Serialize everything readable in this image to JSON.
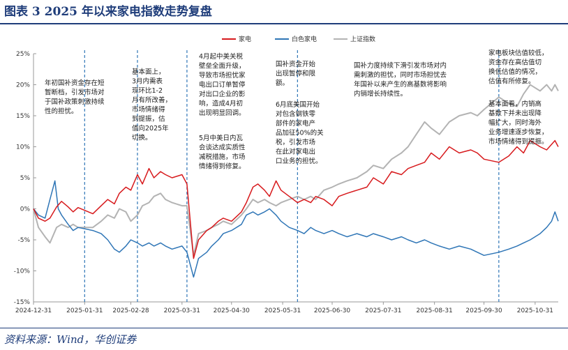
{
  "figure": {
    "title": "图表 3   2025 年以来家电指数走势复盘",
    "source": "资料来源：Wind，华创证券"
  },
  "chart_data": {
    "type": "line",
    "ylim": [
      -15,
      25
    ],
    "y_ticks": [
      25,
      20,
      15,
      10,
      5,
      0,
      -5,
      -10,
      -15
    ],
    "y_tick_labels": [
      "25%",
      "20%",
      "15%",
      "10%",
      "5%",
      "0%",
      "-5%",
      "-10%",
      "-15%"
    ],
    "x_tick_labels": [
      "2024-12-31",
      "2025-01-31",
      "2025-02-28",
      "2025-03-31",
      "2025-04-30",
      "2025-05-31",
      "2025-06-30",
      "2025-07-31",
      "2025-08-31",
      "2025-09-30",
      "2025-10-31"
    ],
    "legend_position": "top-right",
    "series": [
      {
        "name": "家电",
        "color": "#d7191c",
        "points": [
          [
            "2024-12-31",
            0
          ],
          [
            "2025-01-03",
            -1.5
          ],
          [
            "2025-01-07",
            -2
          ],
          [
            "2025-01-10",
            -1.5
          ],
          [
            "2025-01-14",
            0.3
          ],
          [
            "2025-01-17",
            1.2
          ],
          [
            "2025-01-21",
            0.3
          ],
          [
            "2025-01-24",
            -0.5
          ],
          [
            "2025-01-27",
            0.2
          ],
          [
            "2025-02-05",
            -0.8
          ],
          [
            "2025-02-10",
            0.5
          ],
          [
            "2025-02-14",
            1.5
          ],
          [
            "2025-02-18",
            0.8
          ],
          [
            "2025-02-21",
            2.5
          ],
          [
            "2025-02-25",
            3.5
          ],
          [
            "2025-02-28",
            3
          ],
          [
            "2025-03-04",
            5.5
          ],
          [
            "2025-03-07",
            4
          ],
          [
            "2025-03-11",
            6.5
          ],
          [
            "2025-03-14",
            5
          ],
          [
            "2025-03-18",
            6
          ],
          [
            "2025-03-21",
            5.5
          ],
          [
            "2025-03-25",
            5
          ],
          [
            "2025-03-31",
            5.5
          ],
          [
            "2025-04-03",
            4
          ],
          [
            "2025-04-07",
            -8
          ],
          [
            "2025-04-10",
            -5
          ],
          [
            "2025-04-15",
            -3.5
          ],
          [
            "2025-04-18",
            -3
          ],
          [
            "2025-04-22",
            -2
          ],
          [
            "2025-04-25",
            -1.5
          ],
          [
            "2025-04-30",
            -2
          ],
          [
            "2025-05-06",
            -0.5
          ],
          [
            "2025-05-09",
            1
          ],
          [
            "2025-05-13",
            3.5
          ],
          [
            "2025-05-16",
            4
          ],
          [
            "2025-05-20",
            3
          ],
          [
            "2025-05-23",
            2
          ],
          [
            "2025-05-27",
            4.5
          ],
          [
            "2025-05-30",
            3
          ],
          [
            "2025-06-04",
            2
          ],
          [
            "2025-06-09",
            1
          ],
          [
            "2025-06-13",
            1.5
          ],
          [
            "2025-06-17",
            1
          ],
          [
            "2025-06-20",
            2
          ],
          [
            "2025-06-25",
            1.5
          ],
          [
            "2025-06-30",
            0.5
          ],
          [
            "2025-07-04",
            2
          ],
          [
            "2025-07-09",
            2.5
          ],
          [
            "2025-07-15",
            3
          ],
          [
            "2025-07-21",
            3.5
          ],
          [
            "2025-07-25",
            5
          ],
          [
            "2025-07-31",
            4
          ],
          [
            "2025-08-05",
            6
          ],
          [
            "2025-08-11",
            5.5
          ],
          [
            "2025-08-15",
            6.5
          ],
          [
            "2025-08-20",
            7
          ],
          [
            "2025-08-25",
            7.5
          ],
          [
            "2025-08-29",
            9
          ],
          [
            "2025-09-03",
            8
          ],
          [
            "2025-09-09",
            10
          ],
          [
            "2025-09-15",
            9
          ],
          [
            "2025-09-22",
            9.5
          ],
          [
            "2025-09-26",
            9
          ],
          [
            "2025-09-30",
            8
          ],
          [
            "2025-10-09",
            7.5
          ],
          [
            "2025-10-15",
            8.5
          ],
          [
            "2025-10-20",
            10
          ],
          [
            "2025-10-24",
            9
          ],
          [
            "2025-10-28",
            11
          ],
          [
            "2025-11-03",
            10
          ],
          [
            "2025-11-07",
            9.5
          ],
          [
            "2025-11-12",
            11
          ],
          [
            "2025-11-14",
            10
          ]
        ]
      },
      {
        "name": "白色家电",
        "color": "#2e75b6",
        "points": [
          [
            "2024-12-31",
            0
          ],
          [
            "2025-01-03",
            -1
          ],
          [
            "2025-01-07",
            -1.5
          ],
          [
            "2025-01-10",
            1.5
          ],
          [
            "2025-01-13",
            4.5
          ],
          [
            "2025-01-15",
            0
          ],
          [
            "2025-01-17",
            -1
          ],
          [
            "2025-01-21",
            -2.5
          ],
          [
            "2025-01-24",
            -3.5
          ],
          [
            "2025-01-27",
            -3
          ],
          [
            "2025-02-05",
            -3.5
          ],
          [
            "2025-02-10",
            -4
          ],
          [
            "2025-02-14",
            -5
          ],
          [
            "2025-02-18",
            -6.5
          ],
          [
            "2025-02-21",
            -7
          ],
          [
            "2025-02-25",
            -6
          ],
          [
            "2025-02-28",
            -5
          ],
          [
            "2025-03-04",
            -5.5
          ],
          [
            "2025-03-07",
            -6
          ],
          [
            "2025-03-11",
            -5.5
          ],
          [
            "2025-03-14",
            -6
          ],
          [
            "2025-03-18",
            -5.5
          ],
          [
            "2025-03-21",
            -6
          ],
          [
            "2025-03-25",
            -6.5
          ],
          [
            "2025-03-31",
            -6
          ],
          [
            "2025-04-03",
            -7
          ],
          [
            "2025-04-07",
            -11
          ],
          [
            "2025-04-10",
            -8
          ],
          [
            "2025-04-15",
            -7
          ],
          [
            "2025-04-18",
            -6
          ],
          [
            "2025-04-22",
            -5
          ],
          [
            "2025-04-25",
            -4
          ],
          [
            "2025-04-30",
            -3.5
          ],
          [
            "2025-05-06",
            -2.5
          ],
          [
            "2025-05-09",
            -1
          ],
          [
            "2025-05-13",
            -0.5
          ],
          [
            "2025-05-16",
            -1
          ],
          [
            "2025-05-20",
            -0.5
          ],
          [
            "2025-05-23",
            0
          ],
          [
            "2025-05-27",
            -1
          ],
          [
            "2025-05-30",
            -2
          ],
          [
            "2025-06-04",
            -3
          ],
          [
            "2025-06-09",
            -3.5
          ],
          [
            "2025-06-13",
            -4
          ],
          [
            "2025-06-17",
            -3
          ],
          [
            "2025-06-20",
            -3.5
          ],
          [
            "2025-06-25",
            -4
          ],
          [
            "2025-06-30",
            -3.5
          ],
          [
            "2025-07-04",
            -4
          ],
          [
            "2025-07-09",
            -4.5
          ],
          [
            "2025-07-15",
            -4
          ],
          [
            "2025-07-21",
            -4.5
          ],
          [
            "2025-07-25",
            -4
          ],
          [
            "2025-07-31",
            -4.5
          ],
          [
            "2025-08-05",
            -5
          ],
          [
            "2025-08-11",
            -4.5
          ],
          [
            "2025-08-15",
            -5
          ],
          [
            "2025-08-20",
            -5.5
          ],
          [
            "2025-08-25",
            -5
          ],
          [
            "2025-08-29",
            -5.5
          ],
          [
            "2025-09-03",
            -6
          ],
          [
            "2025-09-09",
            -6.5
          ],
          [
            "2025-09-15",
            -6
          ],
          [
            "2025-09-22",
            -6.5
          ],
          [
            "2025-09-26",
            -7
          ],
          [
            "2025-09-30",
            -7.5
          ],
          [
            "2025-10-09",
            -7
          ],
          [
            "2025-10-15",
            -6.5
          ],
          [
            "2025-10-20",
            -6
          ],
          [
            "2025-10-24",
            -5.5
          ],
          [
            "2025-10-28",
            -5
          ],
          [
            "2025-11-03",
            -4
          ],
          [
            "2025-11-07",
            -3
          ],
          [
            "2025-11-10",
            -2
          ],
          [
            "2025-11-12",
            -0.5
          ],
          [
            "2025-11-14",
            -2
          ]
        ]
      },
      {
        "name": "上证指数",
        "color": "#b3b3b3",
        "points": [
          [
            "2024-12-31",
            0
          ],
          [
            "2025-01-03",
            -3
          ],
          [
            "2025-01-07",
            -4.5
          ],
          [
            "2025-01-10",
            -5.5
          ],
          [
            "2025-01-14",
            -3
          ],
          [
            "2025-01-17",
            -2.5
          ],
          [
            "2025-01-21",
            -3
          ],
          [
            "2025-01-24",
            -2.5
          ],
          [
            "2025-01-27",
            -3
          ],
          [
            "2025-02-05",
            -3
          ],
          [
            "2025-02-10",
            -2
          ],
          [
            "2025-02-14",
            -1
          ],
          [
            "2025-02-18",
            -1.5
          ],
          [
            "2025-02-21",
            0
          ],
          [
            "2025-02-25",
            -0.5
          ],
          [
            "2025-02-28",
            -2
          ],
          [
            "2025-03-04",
            -1
          ],
          [
            "2025-03-07",
            0.5
          ],
          [
            "2025-03-11",
            1
          ],
          [
            "2025-03-14",
            2
          ],
          [
            "2025-03-18",
            2.5
          ],
          [
            "2025-03-21",
            1.5
          ],
          [
            "2025-03-25",
            1
          ],
          [
            "2025-03-31",
            0.5
          ],
          [
            "2025-04-03",
            0.5
          ],
          [
            "2025-04-07",
            -7.5
          ],
          [
            "2025-04-10",
            -4
          ],
          [
            "2025-04-15",
            -3.5
          ],
          [
            "2025-04-18",
            -3
          ],
          [
            "2025-04-22",
            -2.5
          ],
          [
            "2025-04-25",
            -2
          ],
          [
            "2025-04-30",
            -2.5
          ],
          [
            "2025-05-06",
            -1
          ],
          [
            "2025-05-09",
            0
          ],
          [
            "2025-05-13",
            1.5
          ],
          [
            "2025-05-16",
            1
          ],
          [
            "2025-05-20",
            1.5
          ],
          [
            "2025-05-23",
            1
          ],
          [
            "2025-05-27",
            0.5
          ],
          [
            "2025-05-30",
            1
          ],
          [
            "2025-06-04",
            1.5
          ],
          [
            "2025-06-09",
            2
          ],
          [
            "2025-06-13",
            1.5
          ],
          [
            "2025-06-17",
            2
          ],
          [
            "2025-06-20",
            1.5
          ],
          [
            "2025-06-25",
            3
          ],
          [
            "2025-06-30",
            3.5
          ],
          [
            "2025-07-04",
            4
          ],
          [
            "2025-07-09",
            4.5
          ],
          [
            "2025-07-15",
            5
          ],
          [
            "2025-07-21",
            6
          ],
          [
            "2025-07-25",
            7
          ],
          [
            "2025-07-31",
            6.5
          ],
          [
            "2025-08-05",
            8
          ],
          [
            "2025-08-11",
            9
          ],
          [
            "2025-08-15",
            10
          ],
          [
            "2025-08-20",
            12
          ],
          [
            "2025-08-25",
            14
          ],
          [
            "2025-08-29",
            13
          ],
          [
            "2025-09-03",
            12
          ],
          [
            "2025-09-09",
            14
          ],
          [
            "2025-09-15",
            15
          ],
          [
            "2025-09-22",
            15.5
          ],
          [
            "2025-09-26",
            15
          ],
          [
            "2025-09-30",
            16
          ],
          [
            "2025-10-09",
            18
          ],
          [
            "2025-10-15",
            17
          ],
          [
            "2025-10-20",
            16.5
          ],
          [
            "2025-10-24",
            18.5
          ],
          [
            "2025-10-28",
            20
          ],
          [
            "2025-11-03",
            19
          ],
          [
            "2025-11-07",
            20
          ],
          [
            "2025-11-10",
            19
          ],
          [
            "2025-11-12",
            20
          ],
          [
            "2025-11-14",
            19
          ]
        ]
      }
    ],
    "marker_dates": [
      "2025-01-31",
      "2025-03-04",
      "2025-04-03",
      "2025-06-09",
      "2025-10-09"
    ],
    "annotations": [
      {
        "lines": [
          "年初国补资金存在短",
          "暂断档，引发市场对",
          "于国补政策刺激持续",
          "性的担忧。"
        ]
      },
      {
        "lines": [
          "基本面上，",
          "3月内需表",
          "现环比1-2",
          "月有所改善，",
          "市场情绪得",
          "到提振，估",
          "值向2025年",
          "切换。"
        ]
      },
      {
        "lines": [
          "4月起中美关税",
          "壁垒全面升级，",
          "导致市场担忧家",
          "电出口订单暂停",
          "对出口企业的影",
          "响，造成4月初",
          "出现明显回调。"
        ]
      },
      {
        "lines": [
          "5月中美日内瓦",
          "会谈达成实质性",
          "减税措施，市场",
          "情绪得到修复。"
        ]
      },
      {
        "lines": [
          "国补资金开始",
          "出现暂停和限",
          "额。"
        ]
      },
      {
        "lines": [
          "6月底美国开始",
          "对包含钢铁零",
          "部件的家电产",
          "品加征50%的关",
          "税，引发市场",
          "在此对家电出",
          "口业务的担忧。"
        ]
      },
      {
        "lines": [
          "国补力度持续下滑引发市场对内",
          "需刺激的担忧，同时市场担忧去",
          "年国补以来产生的高基数将影响",
          "内销增长持续性。"
        ]
      },
      {
        "lines": [
          "家电板块估值较低，",
          "资金存在高估值切",
          "换低估值的情况，",
          "估值有所修复。"
        ]
      },
      {
        "lines": [
          "基本面看，内销高",
          "基数下并未出现降",
          "幅扩大，同时海外",
          "业务增速逐步恢复，",
          "市场情绪得到提振。"
        ]
      }
    ]
  }
}
